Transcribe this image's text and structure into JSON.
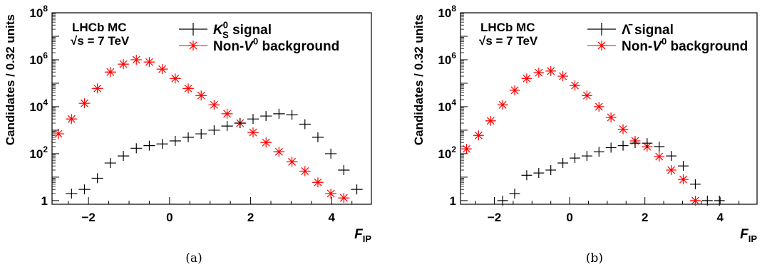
{
  "chart_data": [
    {
      "type": "scatter",
      "panel_label": "(a)",
      "xlabel": "F_IP",
      "ylabel": "Candidates / 0.32 units",
      "y_scale": "log",
      "xlim": [
        -2.9,
        4.98
      ],
      "ylim": [
        0.7,
        100000000
      ],
      "x_ticks": [
        -2,
        0,
        2,
        4
      ],
      "y_ticks": [
        1,
        100,
        10000,
        1000000,
        100000000
      ],
      "annotation": {
        "line1": "LHCb MC",
        "line2": "√s = 7 TeV"
      },
      "legend_position": "top-right",
      "x": [
        -2.74,
        -2.42,
        -2.1,
        -1.78,
        -1.46,
        -1.14,
        -0.82,
        -0.5,
        -0.18,
        0.14,
        0.46,
        0.78,
        1.1,
        1.42,
        1.74,
        2.06,
        2.38,
        2.7,
        3.02,
        3.34,
        3.66,
        3.98,
        4.3,
        4.62
      ],
      "series": [
        {
          "name": "K_S^0 signal",
          "color": "#000000",
          "marker": "cross",
          "values": [
            null,
            2,
            3,
            9,
            40,
            80,
            170,
            220,
            260,
            350,
            500,
            700,
            1000,
            1500,
            2000,
            3000,
            4000,
            5000,
            4500,
            1800,
            500,
            100,
            20,
            3
          ]
        },
        {
          "name": "Non-V^0 background",
          "color": "#ff0000",
          "marker": "star",
          "values": [
            700,
            3000,
            14000,
            60000,
            300000,
            650000,
            1000000,
            800000,
            400000,
            160000,
            60000,
            30000,
            12000,
            5000,
            2000,
            800,
            300,
            120,
            45,
            18,
            6,
            2,
            1.3,
            null
          ]
        }
      ]
    },
    {
      "type": "scatter",
      "panel_label": "(b)",
      "xlabel": "F_IP",
      "ylabel": "Candidates / 0.32 units",
      "y_scale": "log",
      "xlim": [
        -2.9,
        4.98
      ],
      "ylim": [
        0.7,
        100000000
      ],
      "x_ticks": [
        -2,
        0,
        2,
        4
      ],
      "y_ticks": [
        1,
        100,
        10000,
        1000000,
        100000000
      ],
      "annotation": {
        "line1": "LHCb MC",
        "line2": "√s = 7 TeV"
      },
      "legend_position": "top-right",
      "x": [
        -2.74,
        -2.42,
        -2.1,
        -1.78,
        -1.46,
        -1.14,
        -0.82,
        -0.5,
        -0.18,
        0.14,
        0.46,
        0.78,
        1.1,
        1.42,
        1.74,
        2.06,
        2.38,
        2.7,
        3.02,
        3.34,
        3.66,
        3.98,
        4.3,
        4.62
      ],
      "series": [
        {
          "name": "Λ̄ signal",
          "color": "#000000",
          "marker": "cross",
          "values": [
            null,
            null,
            null,
            1,
            2,
            12,
            15,
            20,
            40,
            65,
            80,
            120,
            180,
            220,
            280,
            280,
            200,
            80,
            30,
            5,
            1,
            1,
            null,
            null
          ]
        },
        {
          "name": "Non-V^0 background",
          "color": "#ff0000",
          "marker": "star",
          "values": [
            160,
            600,
            2500,
            12000,
            50000,
            160000,
            280000,
            330000,
            200000,
            80000,
            30000,
            10000,
            3500,
            1100,
            350,
            200,
            75,
            20,
            8,
            1,
            null,
            null,
            null,
            null
          ]
        }
      ]
    }
  ]
}
